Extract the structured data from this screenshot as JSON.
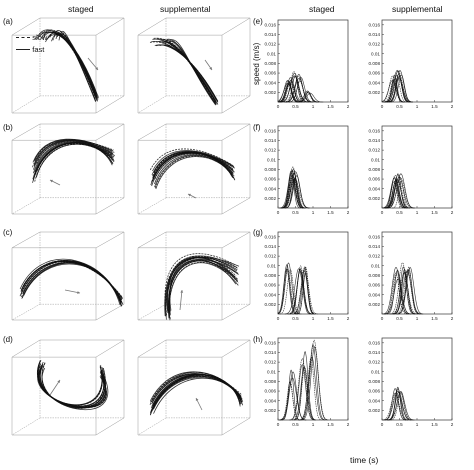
{
  "headers": {
    "left_staged": "staged",
    "left_supplemental": "supplemental",
    "right_staged": "staged",
    "right_supplemental": "supplemental"
  },
  "panel_labels": {
    "a": "(a)",
    "b": "(b)",
    "c": "(c)",
    "d": "(d)",
    "e": "(e)",
    "f": "(f)",
    "g": "(g)",
    "h": "(h)"
  },
  "legend": {
    "slow": "slow",
    "fast": "fast"
  },
  "axis": {
    "ylabel": "speed (m/s)",
    "xlabel": "time (s)"
  },
  "chart_data": {
    "type": "line",
    "ylabel": "speed (m/s)",
    "xlabel": "time (s)",
    "xlim": [
      0,
      2
    ],
    "ylim": [
      0,
      0.017
    ],
    "x_ticks": [
      "0",
      "0.5",
      "1",
      "1.5",
      "2"
    ],
    "y_ticks": [
      "0.002",
      "0.004",
      "0.006",
      "0.008",
      "0.01",
      "0.012",
      "0.014",
      "0.016"
    ],
    "panels": [
      {
        "id": "e",
        "condition": "staged",
        "peaks": [
          {
            "t": 0.35,
            "v": 0.0045
          },
          {
            "t": 0.45,
            "v": 0.0055
          },
          {
            "t": 0.6,
            "v": 0.005
          },
          {
            "t": 0.9,
            "v": 0.002
          },
          {
            "t": 0.3,
            "v": 0.004
          }
        ]
      },
      {
        "id": "e",
        "condition": "supplemental",
        "peaks": [
          {
            "t": 0.35,
            "v": 0.005
          },
          {
            "t": 0.45,
            "v": 0.0058
          },
          {
            "t": 0.5,
            "v": 0.006
          }
        ]
      },
      {
        "id": "f",
        "condition": "staged",
        "peaks": [
          {
            "t": 0.4,
            "v": 0.0075
          },
          {
            "t": 0.45,
            "v": 0.007
          },
          {
            "t": 0.5,
            "v": 0.0065
          }
        ]
      },
      {
        "id": "f",
        "condition": "supplemental",
        "peaks": [
          {
            "t": 0.45,
            "v": 0.0068
          },
          {
            "t": 0.5,
            "v": 0.0062
          },
          {
            "t": 0.4,
            "v": 0.006
          }
        ]
      },
      {
        "id": "g",
        "condition": "staged",
        "peaks": [
          {
            "t": 0.3,
            "v": 0.0105
          },
          {
            "t": 0.6,
            "v": 0.0095
          },
          {
            "t": 0.8,
            "v": 0.009
          }
        ]
      },
      {
        "id": "g",
        "condition": "supplemental",
        "peaks": [
          {
            "t": 0.45,
            "v": 0.0085
          },
          {
            "t": 0.6,
            "v": 0.0095
          },
          {
            "t": 0.75,
            "v": 0.0105
          }
        ]
      },
      {
        "id": "h",
        "condition": "staged",
        "peaks": [
          {
            "t": 0.4,
            "v": 0.009
          },
          {
            "t": 0.75,
            "v": 0.0125
          },
          {
            "t": 1.0,
            "v": 0.0145
          }
        ]
      },
      {
        "id": "h",
        "condition": "supplemental",
        "peaks": [
          {
            "t": 0.4,
            "v": 0.006
          },
          {
            "t": 0.5,
            "v": 0.0055
          }
        ]
      }
    ]
  }
}
